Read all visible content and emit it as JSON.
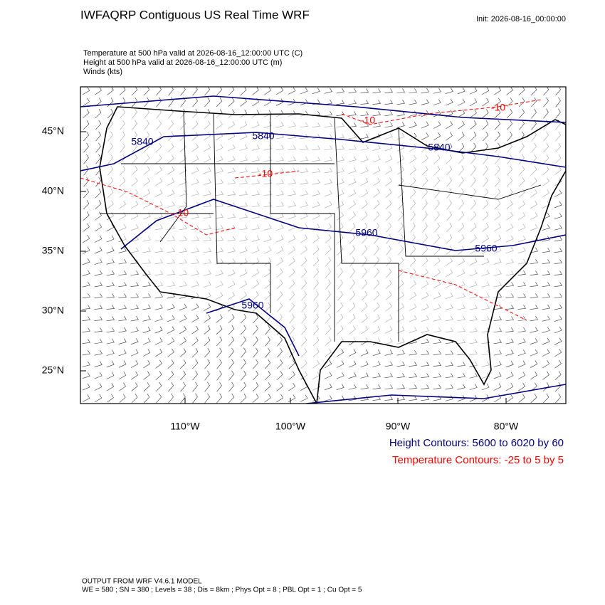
{
  "title": "IWFAQRP Contiguous US Real Time WRF",
  "init": "Init: 2026-08-16_00:00:00",
  "fields": [
    "Temperature at 500 hPa valid at 2026-08-16_12:00:00 UTC   (C)",
    "Height at 500 hPa valid at 2026-08-16_12:00:00 UTC   (m)",
    "Winds   (kts)"
  ],
  "lat_labels": [
    "45°N",
    "40°N",
    "35°N",
    "30°N",
    "25°N"
  ],
  "lon_labels": [
    "110°W",
    "100°W",
    "90°W",
    "80°W"
  ],
  "height_labels": [
    "5840",
    "5840",
    "5840",
    "5960",
    "5960",
    "5960"
  ],
  "temperature_labels": [
    "-10",
    "-10",
    "-10",
    "-10"
  ],
  "legend": [
    "Height Contours: 5600 to 6020 by 60",
    "Temperature Contours: -25 to 5 by 5"
  ],
  "footer": [
    "OUTPUT FROM WRF V4.6.1 MODEL",
    "WE = 580 ; SN = 380 ; Levels = 38 ; Dis = 8km ; Phys Opt = 8 ; PBL Opt = 1 ; Cu Opt = 5"
  ]
}
